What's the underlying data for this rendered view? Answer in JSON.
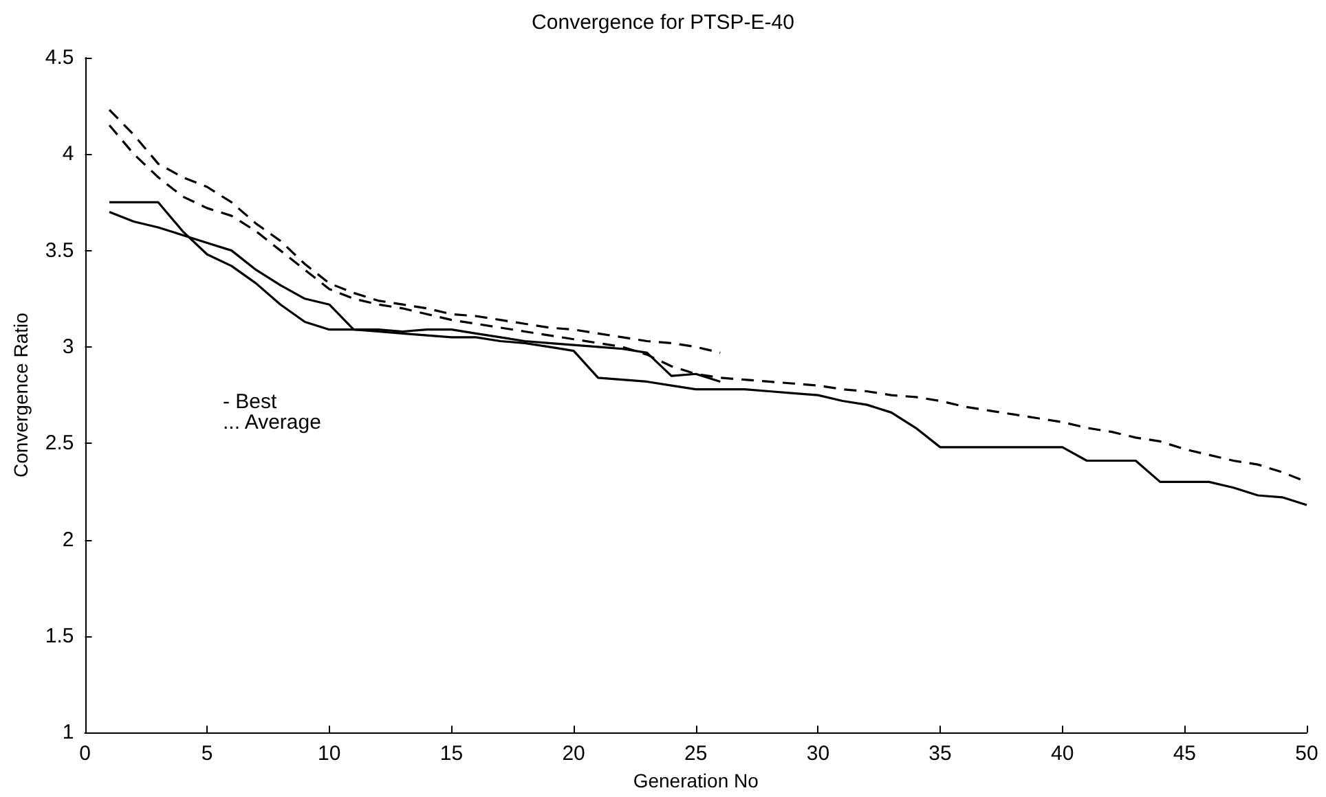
{
  "chart_data": {
    "type": "line",
    "title": "Convergence for PTSP-E-40",
    "xlabel": "Generation No",
    "ylabel": "Convergence Ratio",
    "annotations": [
      "- Best",
      "... Average"
    ],
    "x": [
      1,
      2,
      3,
      4,
      5,
      6,
      7,
      8,
      9,
      10,
      11,
      12,
      13,
      14,
      15,
      16,
      17,
      18,
      19,
      20,
      21,
      22,
      23,
      24,
      25,
      26,
      27,
      28,
      29,
      30,
      31,
      32,
      33,
      34,
      35,
      36,
      37,
      38,
      39,
      40,
      41,
      42,
      43,
      44,
      45,
      46,
      47,
      48,
      49,
      50
    ],
    "series": [
      {
        "color": "#000000",
        "line_style": "solid",
        "values": [
          3.7,
          3.65,
          3.62,
          3.58,
          3.54,
          3.5,
          3.4,
          3.32,
          3.25,
          3.22,
          3.09,
          3.08,
          3.07,
          3.06,
          3.05,
          3.05,
          3.03,
          3.02,
          3.0,
          2.98,
          2.84,
          2.83,
          2.82,
          2.8,
          2.78,
          2.78,
          2.78,
          2.77,
          2.76,
          2.75,
          2.72,
          2.7,
          2.66,
          2.58,
          2.48,
          2.48,
          2.48,
          2.48,
          2.48,
          2.48,
          2.41,
          2.41,
          2.41,
          2.3,
          2.3,
          2.3,
          2.27,
          2.23,
          2.22,
          2.18
        ]
      },
      {
        "color": "#000000",
        "line_style": "solid",
        "values": [
          3.75,
          3.75,
          3.75,
          3.6,
          3.48,
          3.42,
          3.33,
          3.22,
          3.13,
          3.09,
          3.09,
          3.09,
          3.08,
          3.09,
          3.09,
          3.07,
          3.05,
          3.03,
          3.02,
          3.01,
          3.0,
          2.99,
          2.97,
          2.85,
          2.86,
          2.82,
          null,
          null,
          null,
          null,
          null,
          null,
          null,
          null,
          null,
          null,
          null,
          null,
          null,
          null,
          null,
          null,
          null,
          null,
          null,
          null,
          null,
          null,
          null,
          null
        ]
      },
      {
        "color": "#000000",
        "line_style": "dashed",
        "values": [
          4.15,
          4.0,
          3.88,
          3.78,
          3.72,
          3.68,
          3.6,
          3.5,
          3.4,
          3.3,
          3.25,
          3.22,
          3.2,
          3.17,
          3.14,
          3.12,
          3.1,
          3.08,
          3.06,
          3.04,
          3.02,
          3.0,
          2.96,
          2.9,
          2.86,
          2.84,
          2.83,
          2.82,
          2.81,
          2.8,
          2.78,
          2.77,
          2.75,
          2.74,
          2.72,
          2.69,
          2.67,
          2.65,
          2.63,
          2.61,
          2.58,
          2.56,
          2.53,
          2.51,
          2.47,
          2.44,
          2.41,
          2.39,
          2.35,
          2.3
        ]
      },
      {
        "color": "#000000",
        "line_style": "dashed",
        "values": [
          4.23,
          4.1,
          3.95,
          3.88,
          3.83,
          3.75,
          3.64,
          3.55,
          3.43,
          3.33,
          3.28,
          3.24,
          3.22,
          3.2,
          3.17,
          3.16,
          3.14,
          3.12,
          3.1,
          3.09,
          3.07,
          3.05,
          3.03,
          3.02,
          3.0,
          2.97,
          null,
          null,
          null,
          null,
          null,
          null,
          null,
          null,
          null,
          null,
          null,
          null,
          null,
          null,
          null,
          null,
          null,
          null,
          null,
          null,
          null,
          null,
          null,
          null
        ]
      }
    ],
    "xlim": [
      0,
      50
    ],
    "xticks": [
      0,
      5,
      10,
      15,
      20,
      25,
      30,
      35,
      40,
      45,
      50
    ],
    "ylim": [
      1,
      4.5
    ],
    "yticks": [
      1,
      1.5,
      2,
      2.5,
      3,
      3.5,
      4,
      4.5
    ]
  }
}
